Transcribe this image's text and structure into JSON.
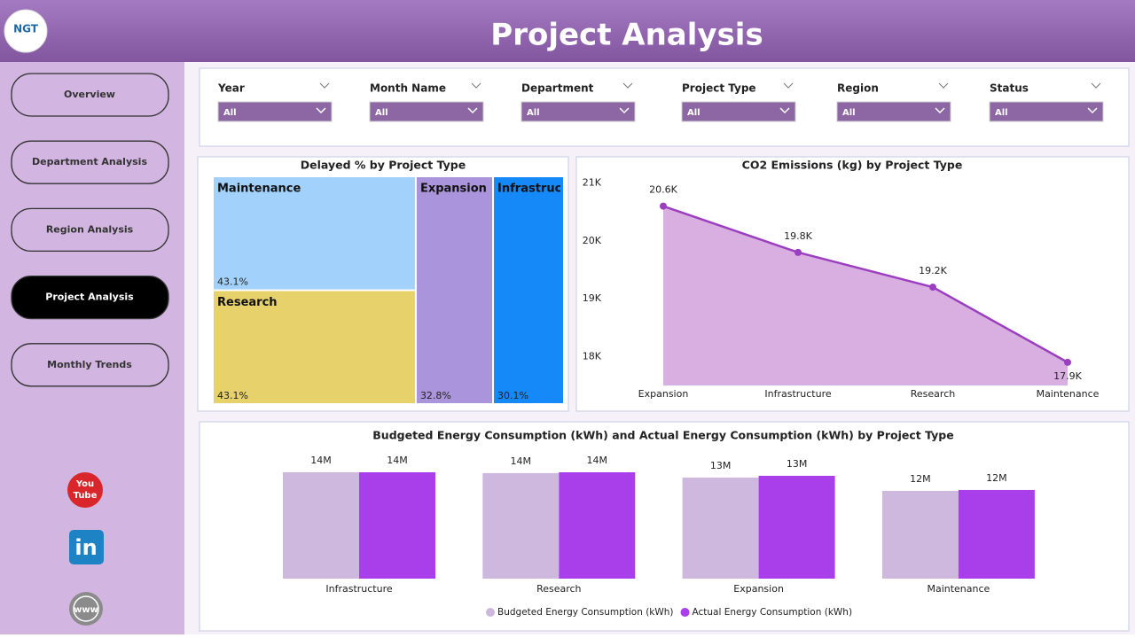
{
  "header": {
    "title": "Project Analysis",
    "logo": "NGT"
  },
  "nav": {
    "items": [
      "Overview",
      "Department Analysis",
      "Region Analysis",
      "Project Analysis",
      "Monthly Trends"
    ],
    "active": 3
  },
  "filters": [
    {
      "label": "Year",
      "value": "All"
    },
    {
      "label": "Month Name",
      "value": "All"
    },
    {
      "label": "Department",
      "value": "All"
    },
    {
      "label": "Project Type",
      "value": "All"
    },
    {
      "label": "Region",
      "value": "All"
    },
    {
      "label": "Status",
      "value": "All"
    }
  ],
  "social": {
    "youtube": [
      "You",
      "Tube"
    ],
    "linkedin": "in",
    "web": "www"
  },
  "chart_data": [
    {
      "type": "treemap",
      "title": "Delayed % by Project Type",
      "categories": [
        "Maintenance",
        "Research",
        "Expansion",
        "Infrastructure"
      ],
      "values": [
        43.1,
        43.1,
        32.8,
        30.1
      ],
      "value_labels": [
        "43.1%",
        "43.1%",
        "32.8%",
        "30.1%"
      ],
      "colors": [
        "#a2d1fb",
        "#e6d16b",
        "#aa94dc",
        "#1589f7"
      ]
    },
    {
      "type": "area",
      "title": "CO2 Emissions (kg) by Project Type",
      "categories": [
        "Expansion",
        "Infrastructure",
        "Research",
        "Maintenance"
      ],
      "values": [
        20600,
        19800,
        19200,
        17900
      ],
      "value_labels": [
        "20.6K",
        "19.8K",
        "19.2K",
        "17.9K"
      ],
      "color": "#9b3fc0",
      "fill": "#d9aee0",
      "ylim": [
        17500,
        21100
      ],
      "yticks": [
        {
          "value": 18000,
          "label": "18K"
        },
        {
          "value": 19000,
          "label": "19K"
        },
        {
          "value": 20000,
          "label": "20K"
        },
        {
          "value": 21000,
          "label": "21K"
        }
      ]
    },
    {
      "type": "grouped-bar",
      "title": "Budgeted Energy Consumption (kWh) and Actual Energy Consumption (kWh) by Project Type",
      "categories": [
        "Infrastructure",
        "Research",
        "Expansion",
        "Maintenance"
      ],
      "series": [
        {
          "name": "Budgeted Energy Consumption (kWh)",
          "color": "#ceb8de",
          "values": [
            13.95,
            13.84,
            13.26,
            11.51
          ],
          "value_labels": [
            "14M",
            "14M",
            "13M",
            "12M"
          ]
        },
        {
          "name": "Actual Energy Consumption (kWh)",
          "color": "#a83feb",
          "values": [
            13.95,
            13.95,
            13.49,
            11.63
          ],
          "value_labels": [
            "14M",
            "14M",
            "13M",
            "12M"
          ]
        }
      ]
    }
  ]
}
